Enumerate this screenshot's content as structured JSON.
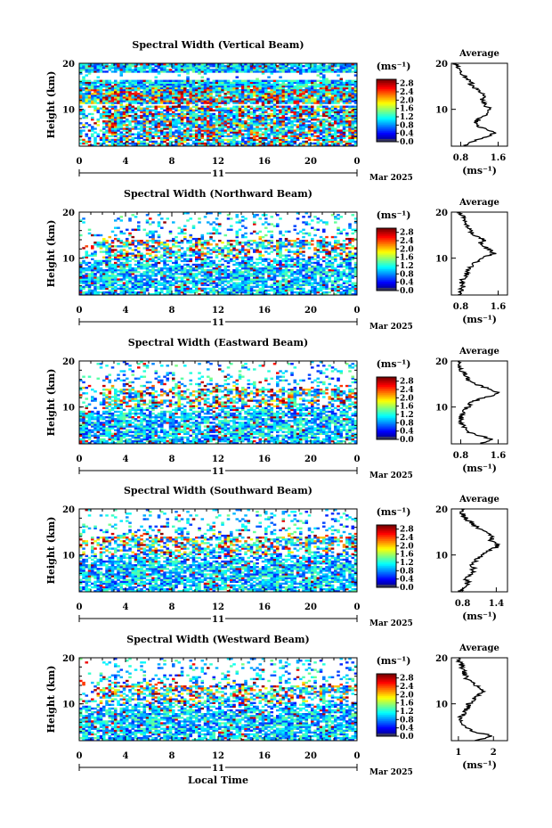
{
  "figure": {
    "date_label": "Mar 2025",
    "day_label": "11",
    "unit_label": "(ms⁻¹)",
    "xlabel": "Local Time"
  },
  "chart_data": [
    {
      "type": "heatmap",
      "title": "Spectral Width (Vertical Beam)",
      "xlabel": "",
      "ylabel": "Height (km)",
      "xlim": [
        0,
        24
      ],
      "ylim": [
        2,
        20
      ],
      "x_ticks": [
        "0",
        "4",
        "8",
        "12",
        "16",
        "20",
        "0"
      ],
      "y_ticks": [
        "20",
        "10"
      ],
      "colorbar": {
        "label": "(ms⁻¹)",
        "ticks": [
          "2.8",
          "2.4",
          "2.0",
          "1.6",
          "1.2",
          "0.8",
          "0.4",
          "0.0"
        ],
        "range": [
          0,
          3.0
        ]
      },
      "average_profile": {
        "title": "Average",
        "xlabel": "(ms⁻¹)",
        "x_ticks": [
          "0.8",
          "1.6"
        ],
        "xlim": [
          0.6,
          1.8
        ],
        "y_ticks": [
          "20",
          "10"
        ],
        "heights": [
          2,
          3,
          4,
          5,
          6,
          7,
          8,
          9,
          10,
          11,
          12,
          13,
          14,
          15,
          16,
          17,
          18,
          19,
          20
        ],
        "values": [
          0.85,
          1.05,
          1.35,
          1.55,
          1.25,
          1.1,
          1.2,
          1.35,
          1.45,
          1.3,
          1.25,
          1.3,
          1.2,
          1.05,
          1.0,
          0.9,
          0.8,
          0.75,
          0.7
        ]
      }
    },
    {
      "type": "heatmap",
      "title": "Spectral Width (Northward Beam)",
      "xlabel": "",
      "ylabel": "Height (km)",
      "xlim": [
        0,
        24
      ],
      "ylim": [
        2,
        20
      ],
      "x_ticks": [
        "0",
        "4",
        "8",
        "12",
        "16",
        "20",
        "0"
      ],
      "y_ticks": [
        "20",
        "10"
      ],
      "colorbar": {
        "label": "(ms⁻¹)",
        "ticks": [
          "2.8",
          "2.4",
          "2.0",
          "1.6",
          "1.2",
          "0.8",
          "0.4",
          "0.0"
        ],
        "range": [
          0,
          3.0
        ]
      },
      "average_profile": {
        "title": "Average",
        "xlabel": "(ms⁻¹)",
        "x_ticks": [
          "0.8",
          "1.6"
        ],
        "xlim": [
          0.6,
          1.8
        ],
        "y_ticks": [
          "20",
          "10"
        ],
        "heights": [
          2,
          3,
          4,
          5,
          6,
          7,
          8,
          9,
          10,
          11,
          12,
          13,
          14,
          15,
          16,
          17,
          18,
          19,
          20
        ],
        "values": [
          0.75,
          0.8,
          0.85,
          0.8,
          0.9,
          0.95,
          1.0,
          1.1,
          1.25,
          1.5,
          1.4,
          1.2,
          1.3,
          1.1,
          1.0,
          0.95,
          0.9,
          0.85,
          0.8
        ]
      }
    },
    {
      "type": "heatmap",
      "title": "Spectral Width (Eastward Beam)",
      "xlabel": "",
      "ylabel": "Height (km)",
      "xlim": [
        0,
        24
      ],
      "ylim": [
        2,
        20
      ],
      "x_ticks": [
        "0",
        "4",
        "8",
        "12",
        "16",
        "20",
        "0"
      ],
      "y_ticks": [
        "20",
        "10"
      ],
      "colorbar": {
        "label": "(ms⁻¹)",
        "ticks": [
          "2.8",
          "2.4",
          "2.0",
          "1.6",
          "1.2",
          "0.8",
          "0.4",
          "0.0"
        ],
        "range": [
          0,
          3.0
        ]
      },
      "average_profile": {
        "title": "Average",
        "xlabel": "(ms⁻¹)",
        "x_ticks": [
          "0.8",
          "1.6"
        ],
        "xlim": [
          0.6,
          1.8
        ],
        "y_ticks": [
          "20",
          "10"
        ],
        "heights": [
          2,
          3,
          4,
          5,
          6,
          7,
          8,
          9,
          10,
          11,
          12,
          13,
          14,
          15,
          16,
          17,
          18,
          19,
          20
        ],
        "values": [
          1.2,
          1.5,
          1.1,
          0.9,
          0.85,
          0.8,
          0.8,
          0.85,
          0.95,
          1.0,
          1.3,
          1.6,
          1.4,
          1.1,
          0.95,
          0.9,
          0.8,
          0.8,
          0.75
        ]
      }
    },
    {
      "type": "heatmap",
      "title": "Spectral Width (Southward Beam)",
      "xlabel": "",
      "ylabel": "Height (km)",
      "xlim": [
        0,
        24
      ],
      "ylim": [
        2,
        20
      ],
      "x_ticks": [
        "0",
        "4",
        "8",
        "12",
        "16",
        "20",
        "0"
      ],
      "y_ticks": [
        "20",
        "10"
      ],
      "colorbar": {
        "label": "(ms⁻¹)",
        "ticks": [
          "2.8",
          "2.4",
          "2.0",
          "1.6",
          "1.2",
          "0.8",
          "0.4",
          "0.0"
        ],
        "range": [
          0,
          3.0
        ]
      },
      "average_profile": {
        "title": "Average",
        "xlabel": "(ms⁻¹)",
        "x_ticks": [
          "0.8",
          "1.4"
        ],
        "xlim": [
          0.6,
          1.6
        ],
        "y_ticks": [
          "20",
          "10"
        ],
        "heights": [
          2,
          3,
          4,
          5,
          6,
          7,
          8,
          9,
          10,
          11,
          12,
          13,
          14,
          15,
          16,
          17,
          18,
          19,
          20
        ],
        "values": [
          0.75,
          0.8,
          0.9,
          0.85,
          0.95,
          1.0,
          0.95,
          1.05,
          1.15,
          1.3,
          1.45,
          1.3,
          1.35,
          1.2,
          1.05,
          0.95,
          0.85,
          0.8,
          0.78
        ]
      }
    },
    {
      "type": "heatmap",
      "title": "Spectral Width (Westward Beam)",
      "xlabel": "Local Time",
      "ylabel": "Height (km)",
      "xlim": [
        0,
        24
      ],
      "ylim": [
        2,
        20
      ],
      "x_ticks": [
        "0",
        "4",
        "8",
        "12",
        "16",
        "20",
        "0"
      ],
      "y_ticks": [
        "20",
        "10"
      ],
      "colorbar": {
        "label": "(ms⁻¹)",
        "ticks": [
          "2.8",
          "2.4",
          "2.0",
          "1.6",
          "1.2",
          "0.8",
          "0.4",
          "0.0"
        ],
        "range": [
          0,
          3.0
        ]
      },
      "average_profile": {
        "title": "Average",
        "xlabel": "(ms⁻¹)",
        "x_ticks": [
          "1",
          "2"
        ],
        "xlim": [
          0.8,
          2.4
        ],
        "y_ticks": [
          "20",
          "10"
        ],
        "heights": [
          2,
          3,
          4,
          5,
          6,
          7,
          8,
          9,
          10,
          11,
          12,
          13,
          14,
          15,
          16,
          17,
          18,
          19,
          20
        ],
        "values": [
          1.5,
          2.0,
          1.4,
          1.2,
          1.1,
          1.05,
          1.15,
          1.25,
          1.3,
          1.45,
          1.6,
          1.7,
          1.5,
          1.3,
          1.2,
          1.15,
          1.1,
          1.05,
          1.0
        ]
      }
    }
  ]
}
